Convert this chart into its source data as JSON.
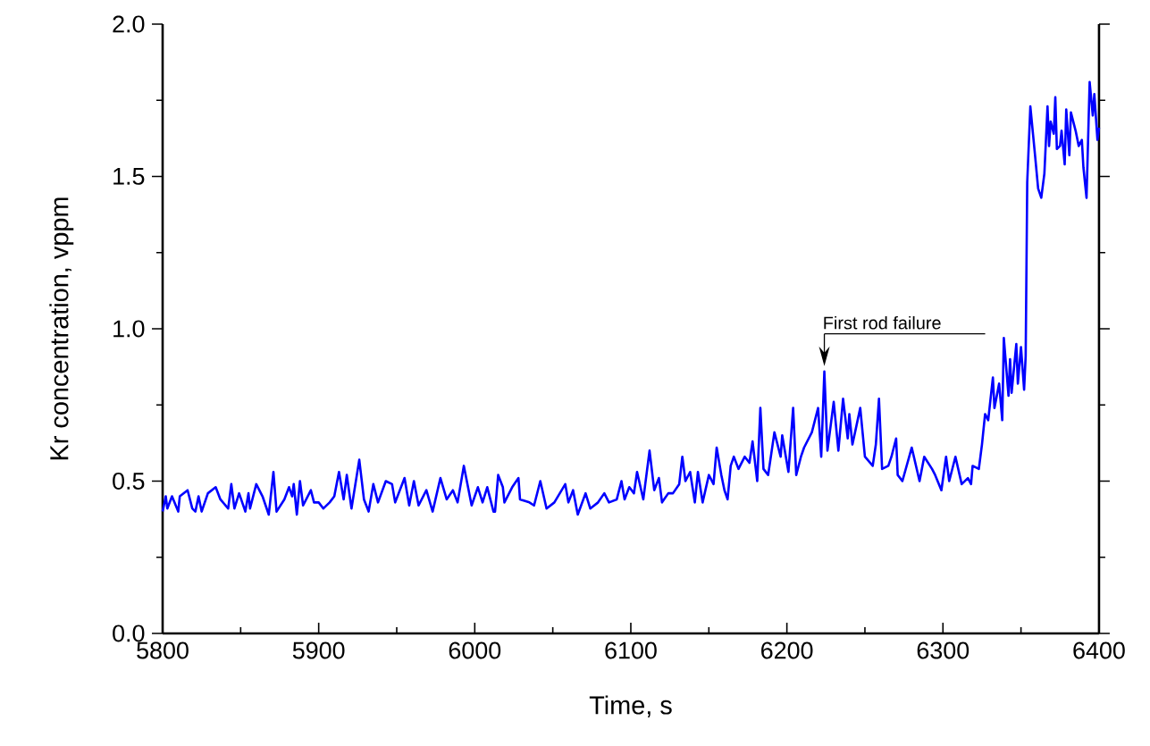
{
  "chart_data": {
    "type": "line",
    "xlabel": "Time, s",
    "ylabel": "Kr concentration, vppm",
    "xlim": [
      5800,
      6400
    ],
    "ylim": [
      0,
      2.0
    ],
    "xticks": [
      5800,
      5900,
      6000,
      6100,
      6200,
      6300,
      6400
    ],
    "yticks": [
      {
        "value": 0,
        "label": "0.0"
      },
      {
        "value": 0.5,
        "label": "0.5"
      },
      {
        "value": 1.0,
        "label": "1.0"
      },
      {
        "value": 1.5,
        "label": "1.5"
      },
      {
        "value": 2.0,
        "label": "2.0"
      }
    ],
    "line_style": "solid",
    "annotations": [
      {
        "text": "First rod failure",
        "x": 6224,
        "y": 0.86
      }
    ],
    "series": [
      {
        "color": "#0000ff",
        "x": [
          5800,
          5802,
          5803,
          5806,
          5810,
          5811,
          5816,
          5819,
          5821,
          5823,
          5825,
          5829,
          5834,
          5837,
          5842,
          5844,
          5846,
          5849,
          5853,
          5855,
          5856,
          5860,
          5864,
          5868,
          5871,
          5873,
          5878,
          5881,
          5883,
          5884,
          5886,
          5888,
          5890,
          5895,
          5897,
          5900,
          5903,
          5907,
          5910,
          5913,
          5916,
          5918,
          5921,
          5926,
          5929,
          5932,
          5935,
          5938,
          5943,
          5947,
          5949,
          5955,
          5958,
          5961,
          5964,
          5969,
          5973,
          5978,
          5982,
          5986,
          5989,
          5993,
          5998,
          6002,
          6005,
          6008,
          6012,
          6013,
          6015,
          6018,
          6019,
          6024,
          6028,
          6029,
          6035,
          6038,
          6042,
          6046,
          6051,
          6058,
          6060,
          6063,
          6066,
          6071,
          6074,
          6079,
          6083,
          6086,
          6091,
          6094,
          6096,
          6099,
          6102,
          6104,
          6108,
          6112,
          6115,
          6118,
          6120,
          6124,
          6127,
          6131,
          6133,
          6135,
          6138,
          6141,
          6143,
          6146,
          6150,
          6153,
          6155,
          6158,
          6160,
          6162,
          6164,
          6166,
          6169,
          6173,
          6176,
          6178,
          6181,
          6183,
          6185,
          6188,
          6192,
          6196,
          6197,
          6201,
          6204,
          6206,
          6209,
          6211,
          6216,
          6220,
          6222,
          6224,
          6226,
          6230,
          6233,
          6236,
          6239,
          6240,
          6242,
          6247,
          6250,
          6255,
          6257,
          6259,
          6261,
          6265,
          6267,
          6270,
          6271,
          6274,
          6280,
          6285,
          6288,
          6293,
          6295,
          6299,
          6302,
          6304,
          6308,
          6312,
          6316,
          6318,
          6319,
          6323,
          6325,
          6327,
          6329,
          6332,
          6333,
          6336,
          6338,
          6339,
          6342,
          6343,
          6344,
          6347,
          6348,
          6350,
          6352,
          6353,
          6354,
          6356,
          6359,
          6361,
          6363,
          6365,
          6367,
          6368,
          6369,
          6371,
          6372,
          6373,
          6375,
          6376,
          6378,
          6379,
          6381,
          6382,
          6385,
          6387,
          6389,
          6390,
          6392,
          6394,
          6396,
          6397,
          6399,
          6400
        ],
        "values": [
          0.4,
          0.45,
          0.41,
          0.45,
          0.4,
          0.45,
          0.47,
          0.41,
          0.4,
          0.45,
          0.4,
          0.46,
          0.48,
          0.44,
          0.41,
          0.49,
          0.41,
          0.46,
          0.4,
          0.46,
          0.41,
          0.49,
          0.45,
          0.39,
          0.53,
          0.4,
          0.44,
          0.48,
          0.45,
          0.49,
          0.39,
          0.5,
          0.42,
          0.47,
          0.43,
          0.43,
          0.41,
          0.43,
          0.45,
          0.53,
          0.44,
          0.52,
          0.41,
          0.57,
          0.44,
          0.4,
          0.49,
          0.43,
          0.5,
          0.49,
          0.43,
          0.51,
          0.42,
          0.5,
          0.42,
          0.47,
          0.4,
          0.51,
          0.44,
          0.47,
          0.43,
          0.55,
          0.42,
          0.48,
          0.43,
          0.48,
          0.4,
          0.4,
          0.52,
          0.48,
          0.43,
          0.48,
          0.51,
          0.44,
          0.43,
          0.42,
          0.5,
          0.41,
          0.43,
          0.49,
          0.43,
          0.47,
          0.39,
          0.46,
          0.41,
          0.43,
          0.46,
          0.43,
          0.44,
          0.5,
          0.44,
          0.48,
          0.46,
          0.53,
          0.44,
          0.6,
          0.47,
          0.51,
          0.43,
          0.46,
          0.46,
          0.49,
          0.58,
          0.5,
          0.53,
          0.43,
          0.53,
          0.43,
          0.52,
          0.49,
          0.61,
          0.52,
          0.47,
          0.44,
          0.55,
          0.58,
          0.54,
          0.58,
          0.56,
          0.63,
          0.5,
          0.74,
          0.54,
          0.52,
          0.66,
          0.58,
          0.65,
          0.53,
          0.74,
          0.52,
          0.58,
          0.61,
          0.66,
          0.74,
          0.58,
          0.86,
          0.6,
          0.76,
          0.6,
          0.77,
          0.64,
          0.72,
          0.62,
          0.74,
          0.58,
          0.55,
          0.62,
          0.77,
          0.54,
          0.55,
          0.58,
          0.64,
          0.52,
          0.5,
          0.61,
          0.5,
          0.58,
          0.54,
          0.52,
          0.47,
          0.58,
          0.5,
          0.58,
          0.49,
          0.51,
          0.49,
          0.55,
          0.54,
          0.62,
          0.72,
          0.7,
          0.84,
          0.74,
          0.82,
          0.7,
          0.97,
          0.78,
          0.9,
          0.79,
          0.95,
          0.82,
          0.94,
          0.8,
          0.91,
          1.48,
          1.73,
          1.57,
          1.46,
          1.43,
          1.51,
          1.73,
          1.6,
          1.68,
          1.64,
          1.76,
          1.59,
          1.6,
          1.65,
          1.54,
          1.72,
          1.57,
          1.71,
          1.65,
          1.6,
          1.62,
          1.53,
          1.43,
          1.81,
          1.7,
          1.77,
          1.62,
          1.66
        ]
      }
    ]
  }
}
